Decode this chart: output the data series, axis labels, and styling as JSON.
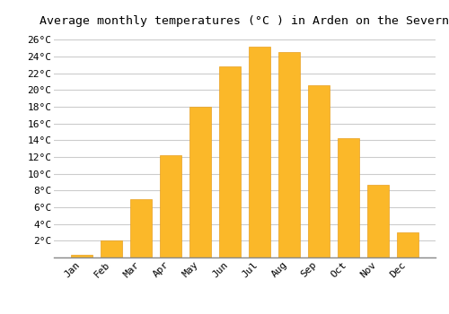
{
  "title": "Average monthly temperatures (°C ) in Arden on the Severn",
  "months": [
    "Jan",
    "Feb",
    "Mar",
    "Apr",
    "May",
    "Jun",
    "Jul",
    "Aug",
    "Sep",
    "Oct",
    "Nov",
    "Dec"
  ],
  "values": [
    0.3,
    2.0,
    7.0,
    12.2,
    18.0,
    22.8,
    25.2,
    24.5,
    20.6,
    14.2,
    8.7,
    3.0
  ],
  "bar_color": "#FBB829",
  "bar_edge_color": "#E8A020",
  "background_color": "#ffffff",
  "grid_color": "#cccccc",
  "ylim": [
    0,
    27
  ],
  "ytick_values": [
    2,
    4,
    6,
    8,
    10,
    12,
    14,
    16,
    18,
    20,
    22,
    24,
    26
  ],
  "title_fontsize": 9.5,
  "tick_fontsize": 8,
  "font_family": "monospace",
  "bar_width": 0.72
}
